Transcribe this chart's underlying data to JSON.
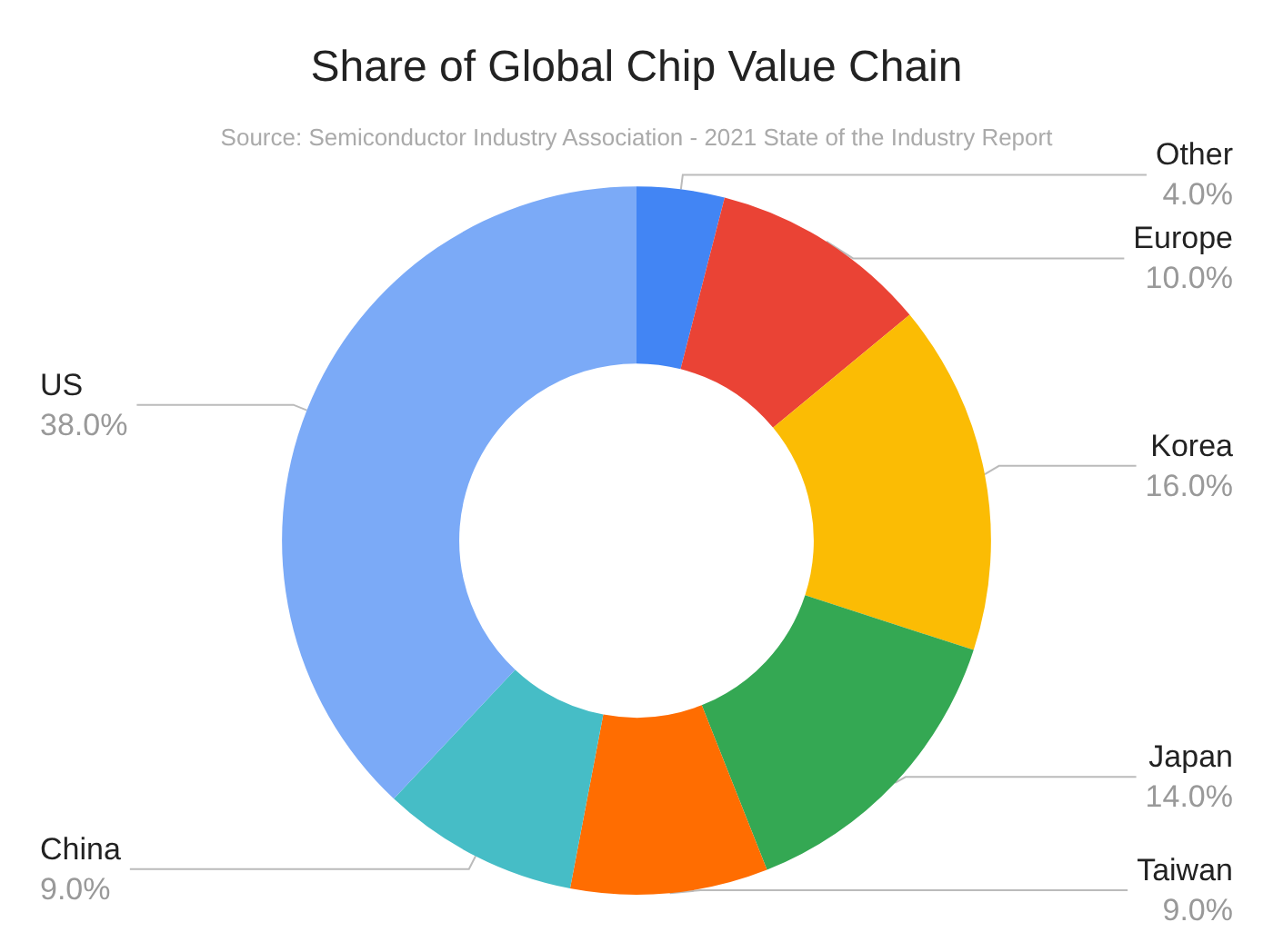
{
  "chart_data": {
    "type": "donut",
    "title": "Share of Global Chip Value Chain",
    "subtitle": "Source: Semiconductor Industry Association - 2021 State of the Industry Report",
    "categories": [
      "Other",
      "Europe",
      "Korea",
      "Japan",
      "Taiwan",
      "China",
      "US"
    ],
    "values": [
      4,
      10,
      16,
      14,
      9,
      9,
      38
    ],
    "value_labels": [
      "4.0%",
      "10.0%",
      "16.0%",
      "14.0%",
      "9.0%",
      "9.0%",
      "38.0%"
    ],
    "colors": [
      "#4285f4",
      "#ea4335",
      "#fbbc04",
      "#34a853",
      "#ff6d01",
      "#46bdc6",
      "#7baaf7"
    ],
    "legend": false
  }
}
